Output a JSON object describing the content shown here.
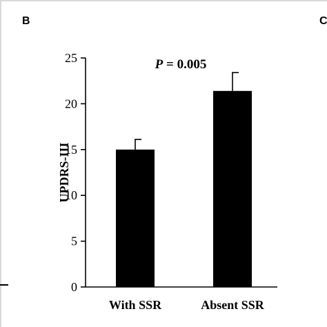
{
  "panel_letters": {
    "left": "B",
    "right": "C"
  },
  "chart_data": {
    "type": "bar",
    "categories": [
      "With SSR",
      "Absent SSR"
    ],
    "values": [
      15.0,
      21.4
    ],
    "error": [
      1.1,
      2.0
    ],
    "ylabel": "UPDRS-III",
    "xlabel": "",
    "ylim": [
      0,
      25
    ],
    "yticks": [
      0,
      5,
      10,
      15,
      20,
      25
    ],
    "annotation_prefix": "P",
    "annotation_rest": " = 0.005",
    "bar_color": "#000000",
    "grid": false
  }
}
